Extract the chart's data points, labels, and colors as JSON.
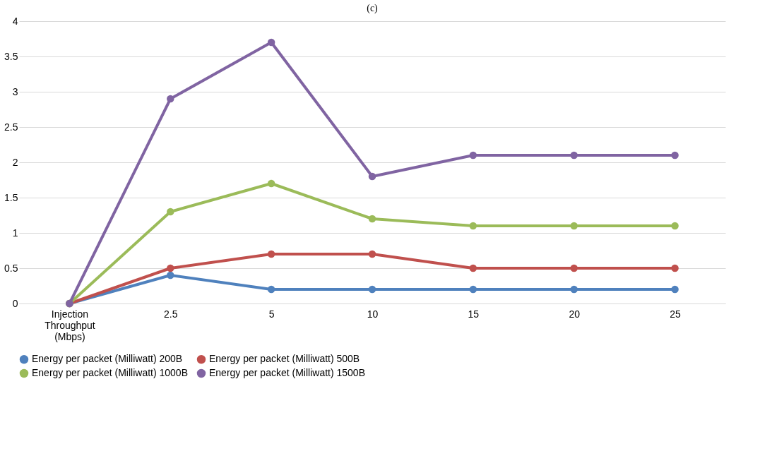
{
  "chart_data": {
    "type": "line",
    "title": "(c)",
    "categories": [
      "Injection Throughput (Mbps)",
      "2.5",
      "5",
      "10",
      "15",
      "20",
      "25"
    ],
    "series": [
      {
        "name": "Energy per packet (Milliwatt) 200B",
        "color": "#4f81bd",
        "values": [
          0,
          0.4,
          0.2,
          0.2,
          0.2,
          0.2,
          0.2
        ]
      },
      {
        "name": "Energy per packet (Milliwatt) 500B",
        "color": "#c0504d",
        "values": [
          0,
          0.5,
          0.7,
          0.7,
          0.5,
          0.5,
          0.5
        ]
      },
      {
        "name": "Energy per packet (Milliwatt) 1000B",
        "color": "#9bbb59",
        "values": [
          0,
          1.3,
          1.7,
          1.2,
          1.1,
          1.1,
          1.1
        ]
      },
      {
        "name": "Energy per packet (Milliwatt) 1500B",
        "color": "#8064a2",
        "values": [
          0,
          2.9,
          3.7,
          1.8,
          2.1,
          2.1,
          2.1
        ]
      }
    ],
    "ylim": [
      0,
      4
    ],
    "yticks": [
      0,
      0.5,
      1,
      1.5,
      2,
      2.5,
      3,
      3.5,
      4
    ],
    "grid": "y",
    "legend": "bottom",
    "marker": "circle",
    "line_style": "solid"
  }
}
